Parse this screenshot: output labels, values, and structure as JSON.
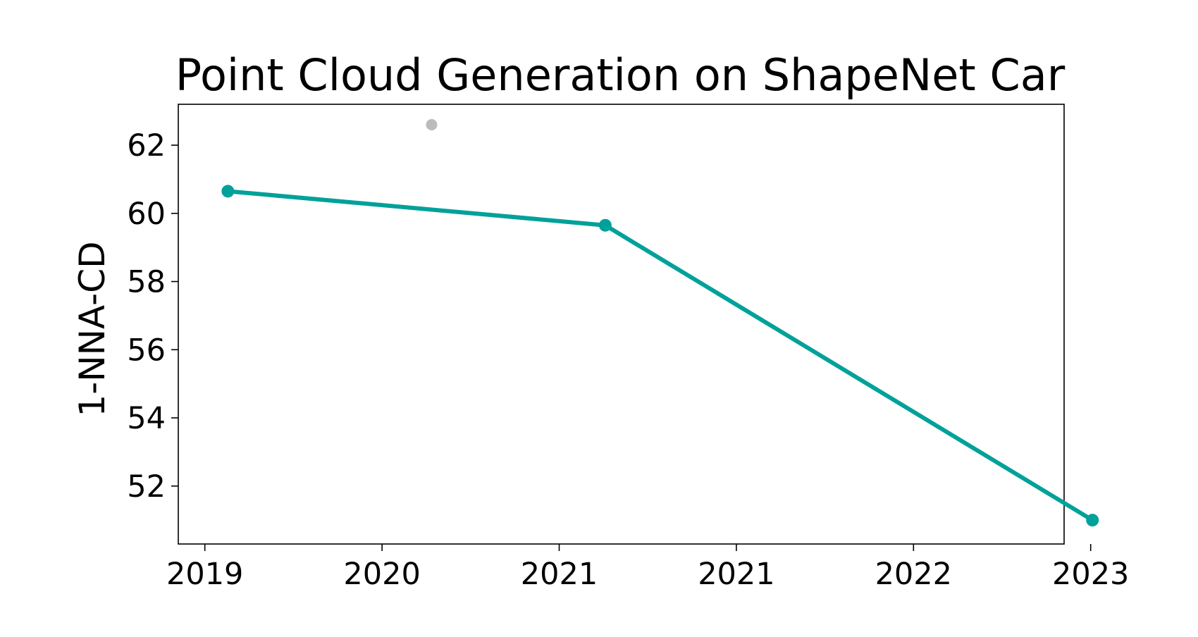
{
  "chart_data": {
    "type": "line",
    "title": "Point Cloud Generation on ShapeNet Car",
    "xlabel": "",
    "ylabel": "1-NNA-CD",
    "xlim": [
      2019.0,
      2024.0
    ],
    "ylim": [
      50.3,
      63.2
    ],
    "grid": false,
    "x_ticks": [
      {
        "value": 2019.15,
        "label": "2019"
      },
      {
        "value": 2020.15,
        "label": "2020"
      },
      {
        "value": 2021.15,
        "label": "2021"
      },
      {
        "value": 2022.15,
        "label": "2021"
      },
      {
        "value": 2023.15,
        "label": "2022"
      },
      {
        "value": 2024.15,
        "label": "2023"
      }
    ],
    "y_ticks": [
      52,
      54,
      56,
      58,
      60,
      62
    ],
    "series": [
      {
        "color": "#00a19a",
        "points": [
          {
            "x": 2019.28,
            "y": 60.65
          },
          {
            "x": 2021.41,
            "y": 59.65
          },
          {
            "x": 2024.16,
            "y": 51.0
          }
        ]
      }
    ],
    "other_points": [
      {
        "x": 2020.43,
        "y": 62.6,
        "color": "#bbbbbb"
      }
    ]
  }
}
